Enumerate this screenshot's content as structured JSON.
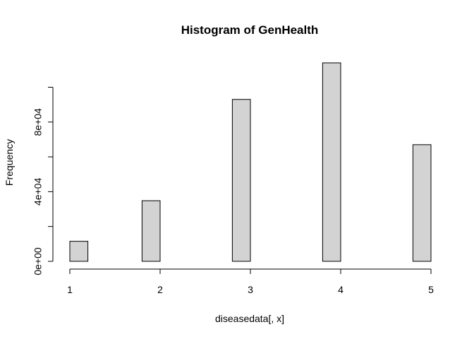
{
  "chart_data": {
    "type": "bar",
    "title": "Histogram of GenHealth",
    "xlabel": "diseasedata[, x]",
    "ylabel": "Frequency",
    "bins": [
      {
        "x0": 1.0,
        "x1": 1.2,
        "count": 11500
      },
      {
        "x0": 1.2,
        "x1": 1.4,
        "count": 0
      },
      {
        "x0": 1.4,
        "x1": 1.6,
        "count": 0
      },
      {
        "x0": 1.6,
        "x1": 1.8,
        "count": 0
      },
      {
        "x0": 1.8,
        "x1": 2.0,
        "count": 34800
      },
      {
        "x0": 2.0,
        "x1": 2.2,
        "count": 0
      },
      {
        "x0": 2.2,
        "x1": 2.4,
        "count": 0
      },
      {
        "x0": 2.4,
        "x1": 2.6,
        "count": 0
      },
      {
        "x0": 2.6,
        "x1": 2.8,
        "count": 0
      },
      {
        "x0": 2.8,
        "x1": 3.0,
        "count": 93000
      },
      {
        "x0": 3.0,
        "x1": 3.2,
        "count": 0
      },
      {
        "x0": 3.2,
        "x1": 3.4,
        "count": 0
      },
      {
        "x0": 3.4,
        "x1": 3.6,
        "count": 0
      },
      {
        "x0": 3.6,
        "x1": 3.8,
        "count": 0
      },
      {
        "x0": 3.8,
        "x1": 4.0,
        "count": 114000
      },
      {
        "x0": 4.0,
        "x1": 4.2,
        "count": 0
      },
      {
        "x0": 4.2,
        "x1": 4.4,
        "count": 0
      },
      {
        "x0": 4.4,
        "x1": 4.6,
        "count": 0
      },
      {
        "x0": 4.6,
        "x1": 4.8,
        "count": 0
      },
      {
        "x0": 4.8,
        "x1": 5.0,
        "count": 67000
      }
    ],
    "xlim": [
      1,
      5
    ],
    "ylim": [
      0,
      114000
    ],
    "x_ticks": [
      1,
      2,
      3,
      4,
      5
    ],
    "x_tick_labels": [
      "1",
      "2",
      "3",
      "4",
      "5"
    ],
    "y_ticks": [
      0,
      20000,
      40000,
      60000,
      80000,
      100000
    ],
    "y_tick_labels": [
      "0e+00",
      "",
      "4e+04",
      "",
      "8e+04",
      ""
    ],
    "bar_fill": "#d3d3d3",
    "bar_stroke": "#000000",
    "grid": false
  }
}
